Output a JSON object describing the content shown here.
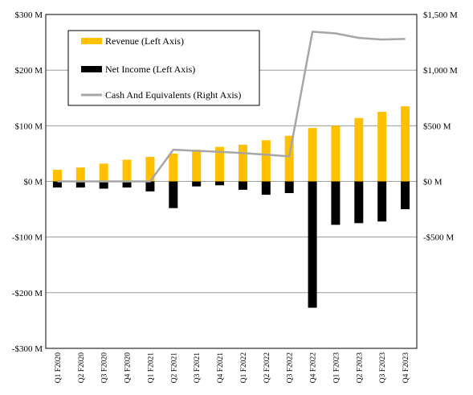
{
  "chart_data": {
    "type": "bar",
    "categories": [
      "Q1 F2020",
      "Q2 F2020",
      "Q3 F2020",
      "Q4 F2020",
      "Q1 F2021",
      "Q2 F2021",
      "Q3 F2021",
      "Q4 F2021",
      "Q1 F2022",
      "Q2 F2022",
      "Q3 F2022",
      "Q4 F2022",
      "Q1 F2023",
      "Q2 F2023",
      "Q3 F2023",
      "Q4 F2023"
    ],
    "series": [
      {
        "name": "Revenue (Left Axis)",
        "axis": "left",
        "type": "bar",
        "color": "#FFC000",
        "values": [
          21,
          25,
          32,
          39,
          44,
          50,
          57,
          62,
          66,
          74,
          82,
          96,
          100,
          114,
          125,
          135
        ]
      },
      {
        "name": "Net Income (Left Axis)",
        "axis": "left",
        "type": "bar",
        "color": "#000000",
        "values": [
          -11,
          -11,
          -13,
          -11,
          -18,
          -48,
          -9,
          -7,
          -15,
          -24,
          -21,
          -227,
          -78,
          -75,
          -72,
          -50
        ]
      },
      {
        "name": "Cash And Equivalents (Right Axis)",
        "axis": "right",
        "type": "line",
        "color": "#A6A6A6",
        "values": [
          0,
          0,
          0,
          0,
          0,
          285,
          275,
          265,
          255,
          240,
          225,
          1345,
          1330,
          1290,
          1275,
          1280
        ]
      }
    ],
    "left_axis": {
      "min": -300,
      "max": 300,
      "ticks": [
        300,
        200,
        100,
        0,
        -100,
        -200,
        -300
      ],
      "tick_labels": [
        "$300 M",
        "$200 M",
        "$100 M",
        "$0 M",
        "-$100 M",
        "-$200 M",
        "-$300 M"
      ]
    },
    "right_axis": {
      "min": -1500,
      "max": 1500,
      "ticks": [
        1500,
        1000,
        500,
        0,
        -500
      ],
      "tick_labels": [
        "$1,500 M",
        "$1,000 M",
        "$500 M",
        "$0 M",
        "-$500 M"
      ]
    },
    "grid": true,
    "legend_position": "top-left"
  }
}
